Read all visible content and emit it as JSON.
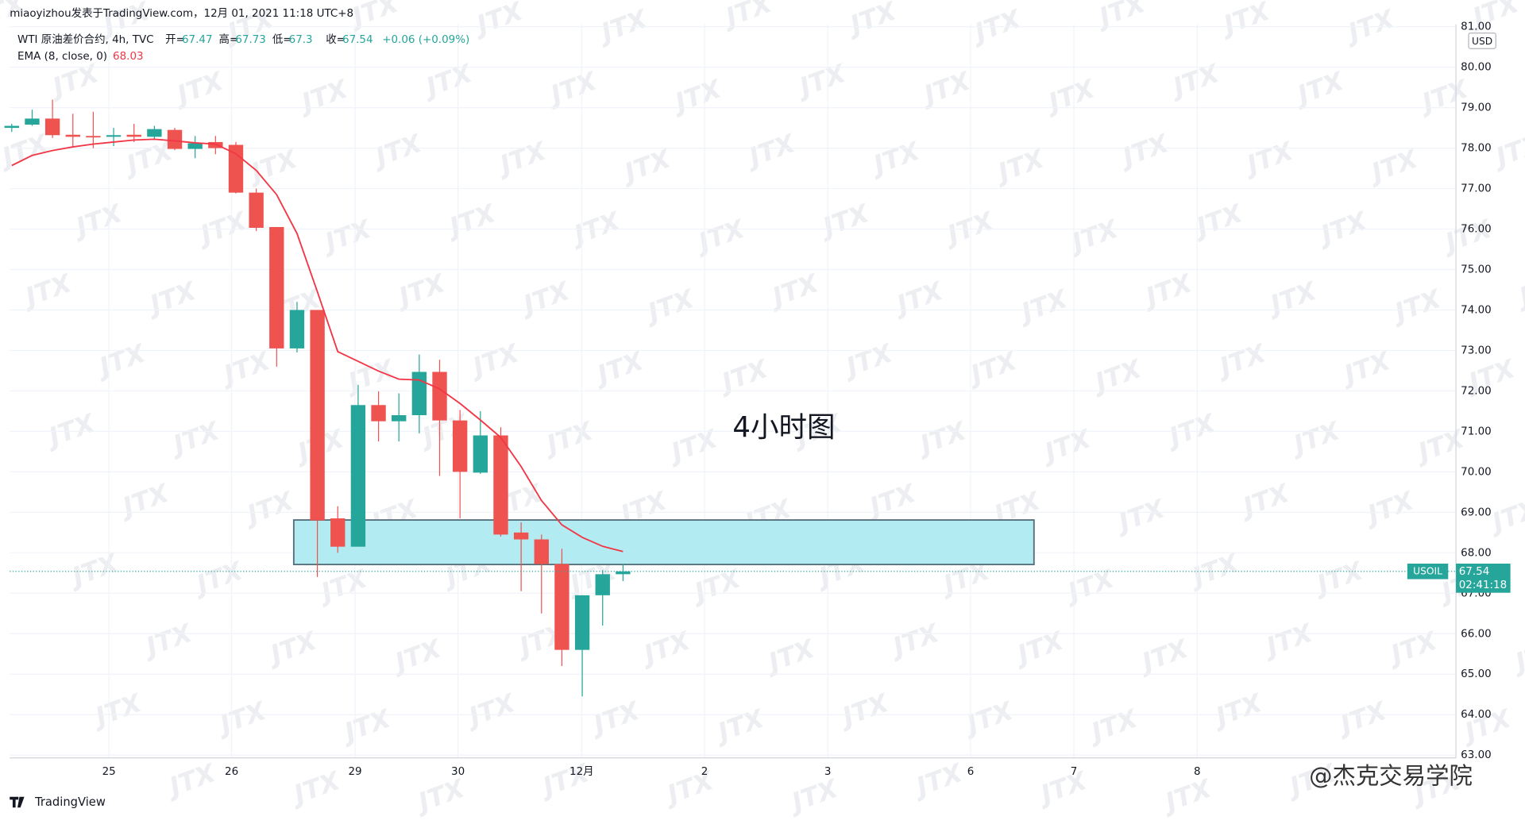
{
  "header": {
    "author_line": "miaoyizhou发表于TradingView.com，12月 01, 2021 11:18 UTC+8",
    "brand": "TradingView",
    "credit": "@杰克交易学院",
    "watermark": "JTX"
  },
  "chart_data": {
    "type": "candlestick",
    "symbol_line": "WTI 原油差价合约, 4h, TVC",
    "ohlc_prefixes": [
      "开=",
      "高=",
      "低=",
      "收="
    ],
    "change": "+0.06 (+0.09%)",
    "annotation": "4小时图",
    "currency": "USD",
    "symbol": "USOIL",
    "countdown": "02:41:18",
    "up_color": "#26a69a",
    "down_color": "#ef5350",
    "x": [
      0,
      1,
      2,
      3,
      4,
      5,
      6,
      7,
      8,
      9,
      10,
      11,
      12,
      13,
      14,
      15,
      16,
      17,
      18,
      19,
      20,
      21,
      22,
      23,
      24,
      25,
      26,
      27,
      28,
      29,
      30
    ],
    "open": [
      78.5,
      78.58,
      78.73,
      78.33,
      78.3,
      78.28,
      78.33,
      78.28,
      78.45,
      77.98,
      78.15,
      78.08,
      76.9,
      76.05,
      73.05,
      74.0,
      68.85,
      68.15,
      71.65,
      71.25,
      71.4,
      72.47,
      71.27,
      69.98,
      70.9,
      68.5,
      68.33,
      67.72,
      65.6,
      66.95,
      67.47
    ],
    "high": [
      78.6,
      78.95,
      79.2,
      78.85,
      78.9,
      78.5,
      78.6,
      78.55,
      78.5,
      78.3,
      78.3,
      78.15,
      77.0,
      76.05,
      74.2,
      74.0,
      69.15,
      72.15,
      71.99,
      71.94,
      72.9,
      72.77,
      71.53,
      71.5,
      71.1,
      68.75,
      68.45,
      68.1,
      66.95,
      67.57,
      67.73
    ],
    "low": [
      78.4,
      78.55,
      78.25,
      78.03,
      78.0,
      78.05,
      78.15,
      78.2,
      77.95,
      77.75,
      77.85,
      76.88,
      75.95,
      72.6,
      72.95,
      67.4,
      68.0,
      68.15,
      70.75,
      70.75,
      70.95,
      69.9,
      68.85,
      69.95,
      68.4,
      67.05,
      66.5,
      65.2,
      64.45,
      66.2,
      67.3
    ],
    "close": [
      78.55,
      78.73,
      78.32,
      78.28,
      78.28,
      78.32,
      78.28,
      78.47,
      77.98,
      78.12,
      78.0,
      76.9,
      76.03,
      73.05,
      74.0,
      68.8,
      68.15,
      71.65,
      71.25,
      71.4,
      72.47,
      71.27,
      70.0,
      70.9,
      68.45,
      68.33,
      67.72,
      65.6,
      66.95,
      67.47,
      67.54
    ],
    "indicator": {
      "name": "EMA (8, close, 0)",
      "color": "#f23645",
      "values": [
        77.57,
        77.82,
        77.94,
        78.03,
        78.1,
        78.15,
        78.2,
        78.22,
        78.18,
        78.13,
        78.1,
        77.86,
        77.45,
        76.85,
        75.89,
        74.45,
        72.97,
        72.73,
        72.49,
        72.29,
        72.27,
        72.05,
        71.69,
        71.28,
        70.85,
        70.13,
        69.29,
        68.69,
        68.38,
        68.16,
        68.03
      ]
    },
    "zone": {
      "x": [
        13.84,
        50.17
      ],
      "y": [
        67.71,
        68.81
      ],
      "color": "#b2ebf2"
    },
    "xlim": [
      -0.1,
      70.88
    ],
    "xticks": [
      {
        "value": 4.77,
        "label": "25"
      },
      {
        "value": 10.79,
        "label": "26"
      },
      {
        "value": 16.85,
        "label": "29"
      },
      {
        "value": 21.9,
        "label": "30"
      },
      {
        "value": 27.97,
        "label": "12月"
      },
      {
        "value": 34.0,
        "label": "2"
      },
      {
        "value": 40.05,
        "label": "3"
      },
      {
        "value": 47.06,
        "label": "6"
      },
      {
        "value": 52.13,
        "label": "7"
      },
      {
        "value": 58.18,
        "label": "8"
      }
    ],
    "ylim": [
      62.93,
      81.06
    ],
    "yticks": [
      {
        "value": 63,
        "label": "63.00"
      },
      {
        "value": 64,
        "label": "64.00"
      },
      {
        "value": 65,
        "label": "65.00"
      },
      {
        "value": 66,
        "label": "66.00"
      },
      {
        "value": 67,
        "label": "67.00"
      },
      {
        "value": 68,
        "label": "68.00"
      },
      {
        "value": 69,
        "label": "69.00"
      },
      {
        "value": 70,
        "label": "70.00"
      },
      {
        "value": 71,
        "label": "71.00"
      },
      {
        "value": 72,
        "label": "72.00"
      },
      {
        "value": 73,
        "label": "73.00"
      },
      {
        "value": 74,
        "label": "74.00"
      },
      {
        "value": 75,
        "label": "75.00"
      },
      {
        "value": 76,
        "label": "76.00"
      },
      {
        "value": 77,
        "label": "77.00"
      },
      {
        "value": 78,
        "label": "78.00"
      },
      {
        "value": 79,
        "label": "79.00"
      },
      {
        "value": 80,
        "label": "80.00"
      },
      {
        "value": 81,
        "label": "81.00"
      }
    ],
    "grid": true
  }
}
